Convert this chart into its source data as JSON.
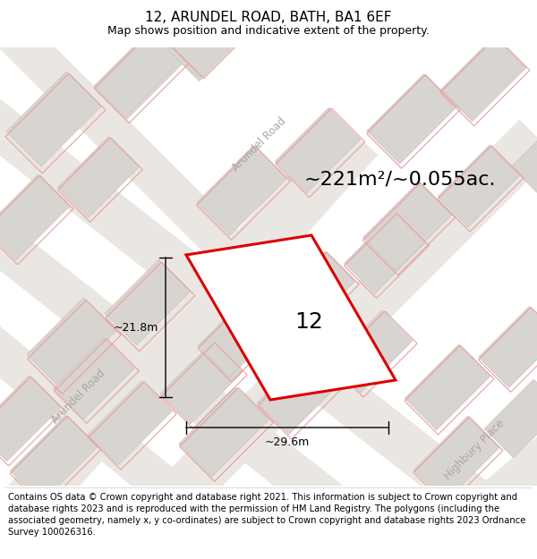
{
  "title": "12, ARUNDEL ROAD, BATH, BA1 6EF",
  "subtitle": "Map shows position and indicative extent of the property.",
  "area_label": "~221m²/~0.055ac.",
  "property_number": "12",
  "dim_width": "~29.6m",
  "dim_height": "~21.8m",
  "road_label_diag": "Arundel Road",
  "road_label_left": "Arundel Road",
  "road_label_right": "Highbury Place",
  "footer": "Contains OS data © Crown copyright and database right 2021. This information is subject to Crown copyright and database rights 2023 and is reproduced with the permission of HM Land Registry. The polygons (including the associated geometry, namely x, y co-ordinates) are subject to Crown copyright and database rights 2023 Ordnance Survey 100026316.",
  "map_bg": "#f7f5f2",
  "road_color": "#eae7e3",
  "block_color": "#d8d4d0",
  "block_edge": "#c8c4c0",
  "red_color": "#dd0000",
  "pink_color": "#e8a0a0",
  "pink_lw": 0.8,
  "title_fontsize": 11,
  "subtitle_fontsize": 9,
  "footer_fontsize": 7.2,
  "area_fontsize": 16,
  "dim_fontsize": 9,
  "num_fontsize": 18,
  "road_label_fontsize": 8.5,
  "road_label_color": "#aaa8a4"
}
